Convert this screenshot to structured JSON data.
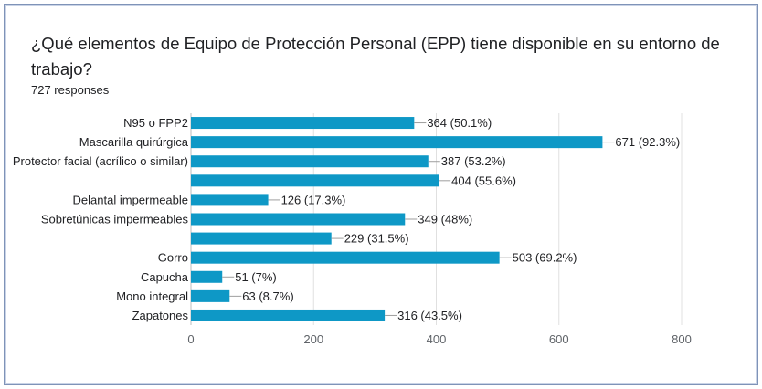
{
  "question": {
    "title": "¿Qué elementos de Equipo de Protección Personal (EPP) tiene disponible en su entorno de trabajo?",
    "responses": "727 responses"
  },
  "colors": {
    "bar": "#0e98c6",
    "grid": "#e0e0e0",
    "axis": "#bdbdbd",
    "leader": "#9e9e9e"
  },
  "chart_data": {
    "type": "bar",
    "orientation": "horizontal",
    "categories": [
      "N95 o FPP2",
      "Mascarilla quirúrgica",
      "Protector facial (acrílico o similar)",
      "",
      "Delantal impermeable",
      "Sobretúnicas impermeables",
      "",
      "Gorro",
      "Capucha",
      "Mono integral",
      "Zapatones"
    ],
    "values": [
      364,
      671,
      387,
      404,
      126,
      349,
      229,
      503,
      51,
      63,
      316
    ],
    "value_labels": [
      "364 (50.1%)",
      "671 (92.3%)",
      "387 (53.2%)",
      "404 (55.6%)",
      "126 (17.3%)",
      "349 (48%)",
      "229 (31.5%)",
      "503 (69.2%)",
      "51 (7%)",
      "63 (8.7%)",
      "316 (43.5%)"
    ],
    "xlim": [
      0,
      800
    ],
    "xticks": [
      0,
      200,
      400,
      600,
      800
    ],
    "grid": true
  }
}
